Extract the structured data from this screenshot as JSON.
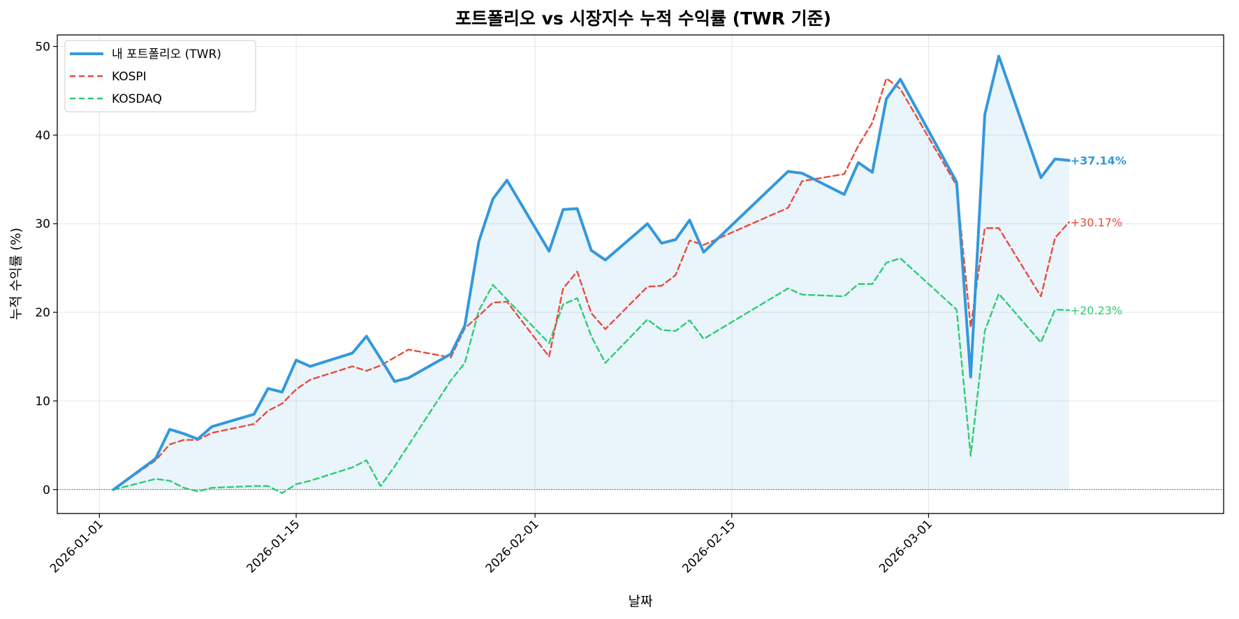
{
  "chart_data": {
    "type": "line",
    "title": "포트폴리오 vs 시장지수 누적 수익률 (TWR 기준)",
    "xlabel": "날짜",
    "ylabel": "누적 수익률 (%)",
    "xlim": [
      "2025-12-29",
      "2026-03-22"
    ],
    "ylim": [
      -2.7,
      51.3
    ],
    "x_ticks": [
      "2026-01-01",
      "2026-01-15",
      "2026-02-01",
      "2026-02-15",
      "2026-03-01"
    ],
    "y_ticks": [
      0,
      10,
      20,
      30,
      40,
      50
    ],
    "grid": true,
    "baseline": 0,
    "legend_position": "top-left",
    "series": [
      {
        "name": "내 포트폴리오 (TWR)",
        "color": "#3498db",
        "style": "solid",
        "fill": true,
        "end_label": "+37.14%",
        "points": [
          [
            "2026-01-02",
            0.0
          ],
          [
            "2026-01-05",
            3.5
          ],
          [
            "2026-01-06",
            6.8
          ],
          [
            "2026-01-07",
            6.3
          ],
          [
            "2026-01-08",
            5.7
          ],
          [
            "2026-01-09",
            7.1
          ],
          [
            "2026-01-12",
            8.5
          ],
          [
            "2026-01-13",
            11.4
          ],
          [
            "2026-01-14",
            11.0
          ],
          [
            "2026-01-15",
            14.6
          ],
          [
            "2026-01-16",
            13.9
          ],
          [
            "2026-01-19",
            15.4
          ],
          [
            "2026-01-20",
            17.3
          ],
          [
            "2026-01-21",
            14.8
          ],
          [
            "2026-01-22",
            12.2
          ],
          [
            "2026-01-23",
            12.6
          ],
          [
            "2026-01-26",
            15.3
          ],
          [
            "2026-01-27",
            18.5
          ],
          [
            "2026-01-28",
            28.0
          ],
          [
            "2026-01-29",
            32.8
          ],
          [
            "2026-01-30",
            34.9
          ],
          [
            "2026-02-02",
            26.9
          ],
          [
            "2026-02-03",
            31.6
          ],
          [
            "2026-02-04",
            31.7
          ],
          [
            "2026-02-05",
            27.0
          ],
          [
            "2026-02-06",
            25.9
          ],
          [
            "2026-02-09",
            30.0
          ],
          [
            "2026-02-10",
            27.8
          ],
          [
            "2026-02-11",
            28.2
          ],
          [
            "2026-02-12",
            30.4
          ],
          [
            "2026-02-13",
            26.8
          ],
          [
            "2026-02-19",
            35.9
          ],
          [
            "2026-02-20",
            35.7
          ],
          [
            "2026-02-23",
            33.3
          ],
          [
            "2026-02-24",
            36.9
          ],
          [
            "2026-02-25",
            35.8
          ],
          [
            "2026-02-26",
            44.1
          ],
          [
            "2026-02-27",
            46.3
          ],
          [
            "2026-03-03",
            34.7
          ],
          [
            "2026-03-04",
            12.7
          ],
          [
            "2026-03-05",
            42.3
          ],
          [
            "2026-03-06",
            48.9
          ],
          [
            "2026-03-09",
            35.2
          ],
          [
            "2026-03-10",
            37.3
          ],
          [
            "2026-03-11",
            37.14
          ]
        ]
      },
      {
        "name": "KOSPI",
        "color": "#e74c3c",
        "style": "dashed",
        "fill": false,
        "end_label": "+30.17%",
        "points": [
          [
            "2026-01-02",
            0.0
          ],
          [
            "2026-01-05",
            3.3
          ],
          [
            "2026-01-06",
            5.1
          ],
          [
            "2026-01-07",
            5.6
          ],
          [
            "2026-01-08",
            5.6
          ],
          [
            "2026-01-09",
            6.4
          ],
          [
            "2026-01-12",
            7.4
          ],
          [
            "2026-01-13",
            8.9
          ],
          [
            "2026-01-14",
            9.7
          ],
          [
            "2026-01-15",
            11.3
          ],
          [
            "2026-01-16",
            12.4
          ],
          [
            "2026-01-19",
            13.9
          ],
          [
            "2026-01-20",
            13.4
          ],
          [
            "2026-01-21",
            14.0
          ],
          [
            "2026-01-23",
            15.8
          ],
          [
            "2026-01-26",
            14.9
          ],
          [
            "2026-01-27",
            18.2
          ],
          [
            "2026-01-28",
            19.6
          ],
          [
            "2026-01-29",
            21.1
          ],
          [
            "2026-01-30",
            21.2
          ],
          [
            "2026-02-02",
            15.0
          ],
          [
            "2026-02-03",
            22.7
          ],
          [
            "2026-02-04",
            24.6
          ],
          [
            "2026-02-05",
            19.9
          ],
          [
            "2026-02-06",
            18.1
          ],
          [
            "2026-02-09",
            22.9
          ],
          [
            "2026-02-10",
            23.0
          ],
          [
            "2026-02-11",
            24.2
          ],
          [
            "2026-02-12",
            28.1
          ],
          [
            "2026-02-13",
            27.6
          ],
          [
            "2026-02-19",
            31.8
          ],
          [
            "2026-02-20",
            34.8
          ],
          [
            "2026-02-23",
            35.6
          ],
          [
            "2026-02-24",
            38.8
          ],
          [
            "2026-02-25",
            41.4
          ],
          [
            "2026-02-26",
            46.4
          ],
          [
            "2026-02-27",
            45.2
          ],
          [
            "2026-03-03",
            34.3
          ],
          [
            "2026-03-04",
            18.3
          ],
          [
            "2026-03-05",
            29.5
          ],
          [
            "2026-03-06",
            29.5
          ],
          [
            "2026-03-09",
            21.8
          ],
          [
            "2026-03-10",
            28.4
          ],
          [
            "2026-03-11",
            30.17
          ]
        ]
      },
      {
        "name": "KOSDAQ",
        "color": "#2ecc71",
        "style": "dashed",
        "fill": false,
        "end_label": "+20.23%",
        "points": [
          [
            "2026-01-02",
            0.0
          ],
          [
            "2026-01-05",
            1.2
          ],
          [
            "2026-01-06",
            1.0
          ],
          [
            "2026-01-07",
            0.2
          ],
          [
            "2026-01-08",
            -0.2
          ],
          [
            "2026-01-09",
            0.2
          ],
          [
            "2026-01-12",
            0.4
          ],
          [
            "2026-01-13",
            0.4
          ],
          [
            "2026-01-14",
            -0.4
          ],
          [
            "2026-01-15",
            0.6
          ],
          [
            "2026-01-16",
            1.0
          ],
          [
            "2026-01-19",
            2.5
          ],
          [
            "2026-01-20",
            3.3
          ],
          [
            "2026-01-21",
            0.4
          ],
          [
            "2026-01-22",
            2.6
          ],
          [
            "2026-01-26",
            12.3
          ],
          [
            "2026-01-27",
            14.3
          ],
          [
            "2026-01-28",
            20.2
          ],
          [
            "2026-01-29",
            23.1
          ],
          [
            "2026-02-02",
            16.5
          ],
          [
            "2026-02-03",
            20.9
          ],
          [
            "2026-02-04",
            21.6
          ],
          [
            "2026-02-05",
            17.3
          ],
          [
            "2026-02-06",
            14.3
          ],
          [
            "2026-02-09",
            19.2
          ],
          [
            "2026-02-10",
            18.0
          ],
          [
            "2026-02-11",
            17.9
          ],
          [
            "2026-02-12",
            19.1
          ],
          [
            "2026-02-13",
            17.0
          ],
          [
            "2026-02-19",
            22.7
          ],
          [
            "2026-02-20",
            22.0
          ],
          [
            "2026-02-23",
            21.8
          ],
          [
            "2026-02-24",
            23.2
          ],
          [
            "2026-02-25",
            23.2
          ],
          [
            "2026-02-26",
            25.6
          ],
          [
            "2026-02-27",
            26.1
          ],
          [
            "2026-03-03",
            20.3
          ],
          [
            "2026-03-04",
            3.8
          ],
          [
            "2026-03-05",
            17.9
          ],
          [
            "2026-03-06",
            22.1
          ],
          [
            "2026-03-09",
            16.6
          ],
          [
            "2026-03-10",
            20.3
          ],
          [
            "2026-03-11",
            20.23
          ]
        ]
      }
    ]
  }
}
